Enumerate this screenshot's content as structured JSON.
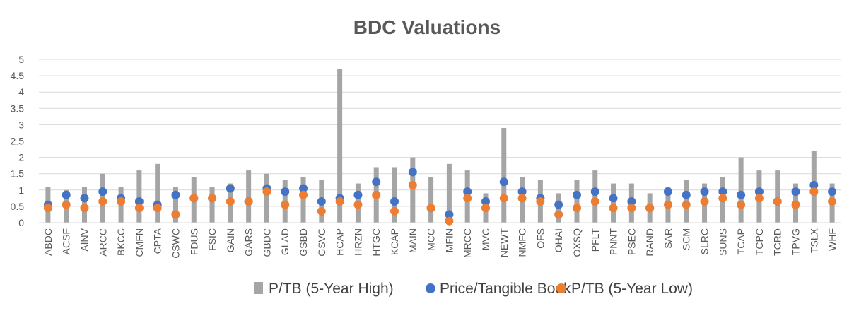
{
  "chart_data": {
    "type": "bar",
    "title": "BDC Valuations",
    "xlabel": "",
    "ylabel": "",
    "ylim": [
      0,
      5
    ],
    "yticks": [
      "0",
      "0.5",
      "1",
      "1.5",
      "2",
      "2.5",
      "3",
      "3.5",
      "4",
      "4.5",
      "5"
    ],
    "grid": true,
    "legend_position": "bottom",
    "categories": [
      "ABDC",
      "ACSF",
      "AINV",
      "ARCC",
      "BKCC",
      "CMFN",
      "CPTA",
      "CSWC",
      "FDUS",
      "FSIC",
      "GAIN",
      "GARS",
      "GBDC",
      "GLAD",
      "GSBD",
      "GSVC",
      "HCAP",
      "HRZN",
      "HTGC",
      "KCAP",
      "MAIN",
      "MCC",
      "MFIN",
      "MRCC",
      "MVC",
      "NEWT",
      "NMFC",
      "OFS",
      "OHAI",
      "OXSQ",
      "PFLT",
      "PNNT",
      "PSEC",
      "RAND",
      "SAR",
      "SCM",
      "SLRC",
      "SUNS",
      "TCAP",
      "TCPC",
      "TCRD",
      "TPVG",
      "TSLX",
      "WHF"
    ],
    "series": [
      {
        "name": "P/TB (5-Year High)",
        "type": "bar",
        "color": "#a5a5a5",
        "values": [
          1.1,
          1.0,
          1.1,
          1.5,
          1.1,
          1.6,
          1.8,
          1.1,
          1.4,
          1.1,
          1.2,
          1.6,
          1.5,
          1.3,
          1.4,
          1.3,
          4.7,
          1.2,
          1.7,
          1.7,
          2.0,
          1.4,
          1.8,
          1.6,
          0.9,
          2.9,
          1.4,
          1.3,
          0.9,
          1.3,
          1.6,
          1.2,
          1.2,
          0.9,
          1.1,
          1.3,
          1.2,
          1.4,
          2.0,
          1.6,
          1.6,
          1.2,
          2.2,
          1.2
        ]
      },
      {
        "name": "Price/Tangible Book",
        "type": "scatter",
        "color": "#4472c4",
        "values": [
          0.55,
          0.85,
          0.75,
          0.95,
          0.75,
          0.65,
          0.55,
          0.85,
          0.75,
          0.75,
          1.05,
          0.65,
          1.05,
          0.95,
          1.05,
          0.65,
          0.75,
          0.85,
          1.25,
          0.65,
          1.55,
          0.45,
          0.25,
          0.95,
          0.65,
          1.25,
          0.95,
          0.75,
          0.55,
          0.85,
          0.95,
          0.75,
          0.65,
          0.45,
          0.95,
          0.85,
          0.95,
          0.95,
          0.85,
          0.95,
          0.65,
          0.95,
          1.15,
          0.95
        ]
      },
      {
        "name": "P/TB (5-Year Low)",
        "type": "scatter",
        "color": "#ed7d31",
        "values": [
          0.45,
          0.55,
          0.45,
          0.65,
          0.65,
          0.45,
          0.45,
          0.25,
          0.75,
          0.75,
          0.65,
          0.65,
          0.95,
          0.55,
          0.85,
          0.35,
          0.65,
          0.55,
          0.85,
          0.35,
          1.15,
          0.45,
          0.05,
          0.75,
          0.45,
          0.75,
          0.75,
          0.65,
          0.25,
          0.45,
          0.65,
          0.45,
          0.45,
          0.45,
          0.55,
          0.55,
          0.65,
          0.75,
          0.55,
          0.75,
          0.65,
          0.55,
          0.95,
          0.65
        ]
      }
    ]
  }
}
